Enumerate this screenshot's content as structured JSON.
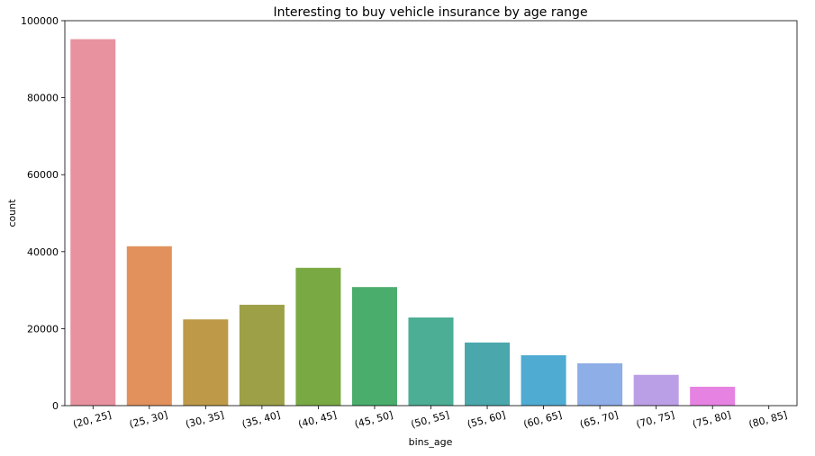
{
  "chart_data": {
    "type": "bar",
    "title": "Interesting to buy vehicle insurance by age range",
    "xlabel": "bins_age",
    "ylabel": "count",
    "categories": [
      "(20, 25]",
      "(25, 30]",
      "(30, 35]",
      "(35, 40]",
      "(40, 45]",
      "(45, 50]",
      "(50, 55]",
      "(55, 60]",
      "(60, 65]",
      "(65, 70]",
      "(70, 75]",
      "(75, 80]",
      "(80, 85]"
    ],
    "values": [
      95200,
      41400,
      22400,
      26200,
      35800,
      30800,
      22900,
      16400,
      13100,
      11000,
      8000,
      4900,
      0
    ],
    "colors": [
      "#e8929f",
      "#e2915c",
      "#be9a48",
      "#9da047",
      "#79a943",
      "#4aad6c",
      "#4cae95",
      "#4aa8ac",
      "#4fabd2",
      "#8daee6",
      "#bb9fe6",
      "#e683e2",
      "#e889c0"
    ],
    "ylim": [
      0,
      100000
    ],
    "yticks": [
      0,
      20000,
      40000,
      60000,
      80000,
      100000
    ],
    "grid": false,
    "legend": "none"
  }
}
